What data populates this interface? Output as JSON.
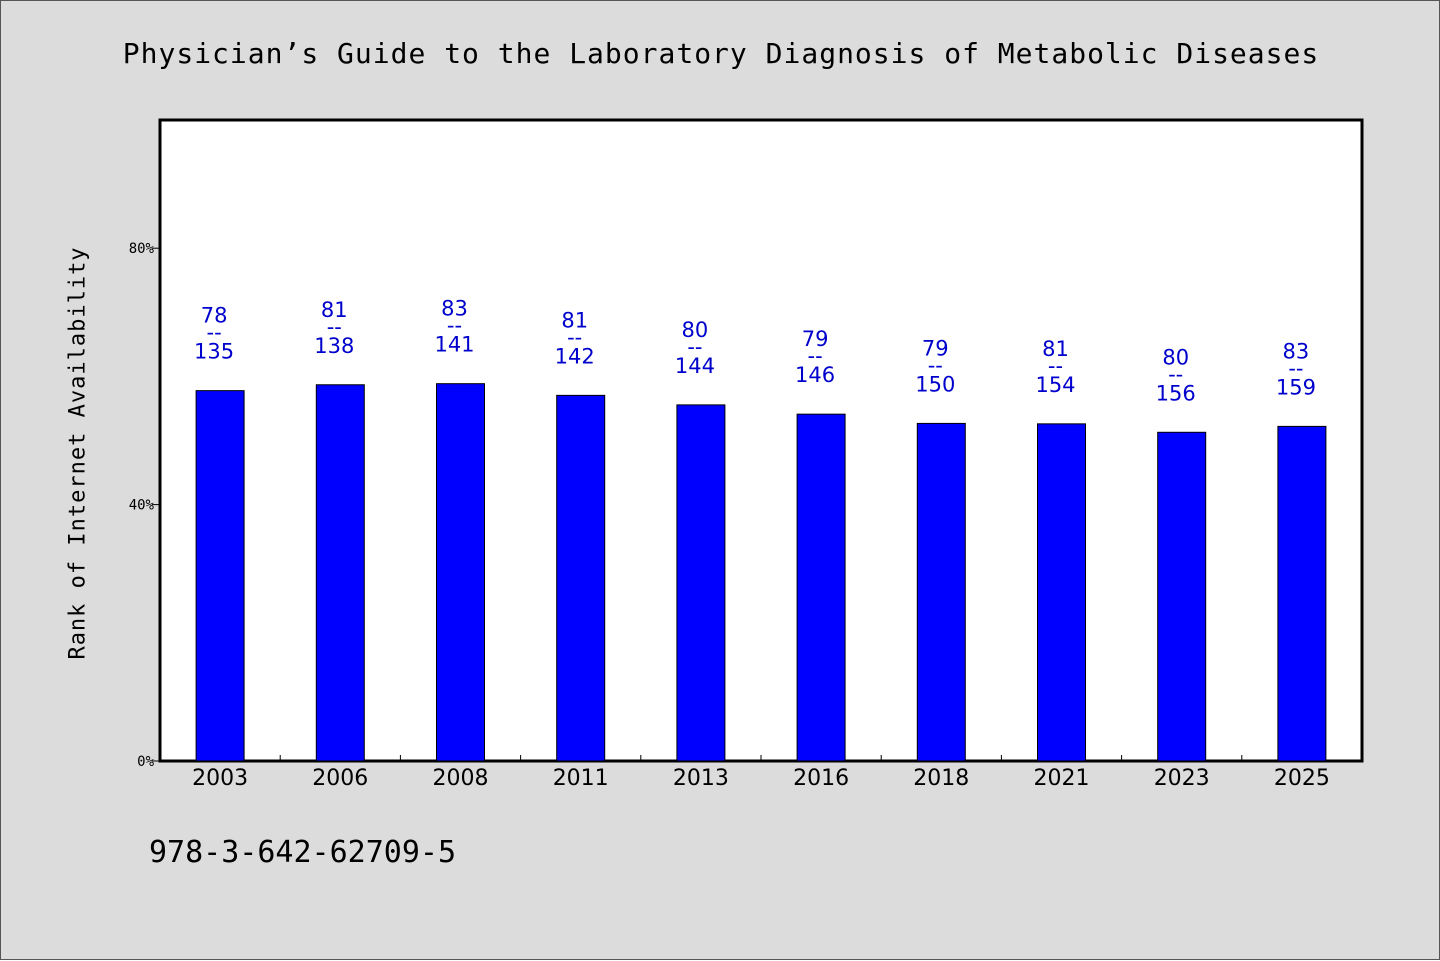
{
  "title": "Physician’s Guide to the Laboratory Diagnosis of Metabolic Diseases",
  "footer_code": "978-3-642-62709-5",
  "chart_data": {
    "type": "bar",
    "ylabel": "Rank of Internet Availability",
    "xlabel": "",
    "ylim": [
      0,
      1
    ],
    "yticks": [
      {
        "value": 0,
        "label": "0%"
      },
      {
        "value": 0.4,
        "label": "40%"
      },
      {
        "value": 0.8,
        "label": "80%"
      }
    ],
    "grid": false,
    "colors": {
      "bar": "#0000ff",
      "label": "#0000cc",
      "background": "#dcdcdc",
      "plot_area": "#ffffff"
    },
    "categories": [
      "2003",
      "2006",
      "2008",
      "2011",
      "2013",
      "2016",
      "2018",
      "2021",
      "2023",
      "2025"
    ],
    "bars": [
      {
        "rank": 78,
        "total": 135
      },
      {
        "rank": 81,
        "total": 138
      },
      {
        "rank": 83,
        "total": 141
      },
      {
        "rank": 81,
        "total": 142
      },
      {
        "rank": 80,
        "total": 144
      },
      {
        "rank": 79,
        "total": 146
      },
      {
        "rank": 79,
        "total": 150
      },
      {
        "rank": 81,
        "total": 154
      },
      {
        "rank": 80,
        "total": 156
      },
      {
        "rank": 83,
        "total": 159
      }
    ],
    "bar_label_separator": "--"
  }
}
